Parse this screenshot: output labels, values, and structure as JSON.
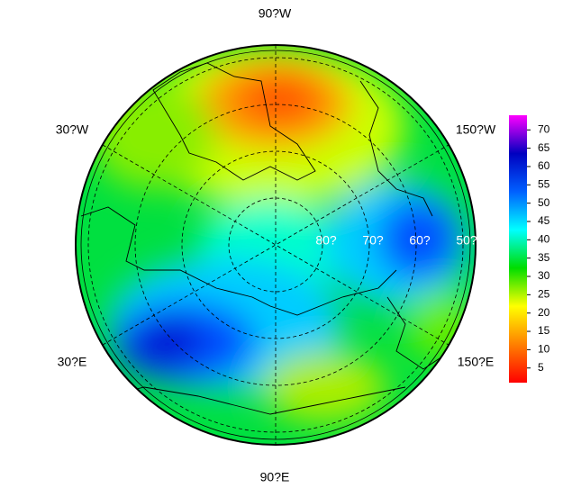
{
  "map": {
    "longitude_labels": {
      "top": "90?W",
      "upper_left": "30?W",
      "upper_right": "150?W",
      "lower_left": "30?E",
      "lower_right": "150?E",
      "bottom": "90?E"
    },
    "latitude_labels": [
      "80?",
      "70?",
      "60?",
      "50?"
    ]
  },
  "colorbar": {
    "lim": [
      1,
      74
    ],
    "ticks": [
      5,
      10,
      15,
      20,
      25,
      30,
      35,
      40,
      45,
      50,
      55,
      60,
      65,
      70
    ],
    "colors": [
      "#ff0000",
      "#ff8000",
      "#ffff00",
      "#00dd00",
      "#00ffff",
      "#0060ff",
      "#0000c0",
      "#ff00ff"
    ]
  }
}
